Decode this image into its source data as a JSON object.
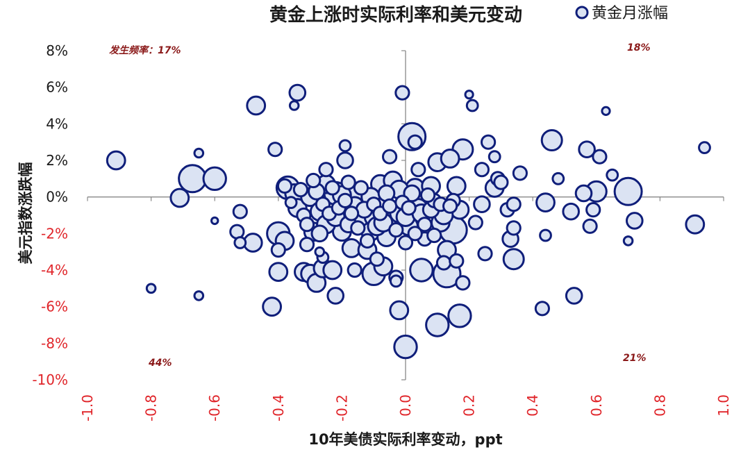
{
  "chart_data": {
    "type": "scatter",
    "title": "黄金上涨时实际利率和美元变动",
    "xlabel": "10年美债实际利率变动，ppt",
    "ylabel": "美元指数涨跌幅",
    "legend": {
      "label": "黄金月涨幅",
      "placement": "top-right"
    },
    "xlim": [
      -1.0,
      1.0
    ],
    "ylim": [
      -10,
      8
    ],
    "x_ticks": [
      "-1.0",
      "-0.8",
      "-0.6",
      "-0.4",
      "-0.2",
      "0.0",
      "0.2",
      "0.4",
      "0.6",
      "0.8",
      "1.0"
    ],
    "y_ticks": [
      "8%",
      "6%",
      "4%",
      "2%",
      "0%",
      "-2%",
      "-4%",
      "-6%",
      "-8%",
      "-10%"
    ],
    "y_tick_colors": {
      "positive": "#1a1a1a",
      "negative": "#e0252a"
    },
    "x_tick_color": "#e0252a",
    "bubble_fill": "#dbe3f3",
    "bubble_stroke": "#0f1e7a",
    "quadrant_labels": {
      "top_left_prefix": "发生频率：",
      "top_left": "17%",
      "top_right": "18%",
      "bottom_left": "44%",
      "bottom_right": "21%"
    },
    "grid": false,
    "points": [
      [
        -0.91,
        2.0,
        3
      ],
      [
        -0.8,
        -5.0,
        1
      ],
      [
        -0.71,
        -0.05,
        3
      ],
      [
        -0.67,
        1.0,
        5
      ],
      [
        -0.65,
        2.4,
        1
      ],
      [
        -0.65,
        -5.4,
        1
      ],
      [
        -0.6,
        1.0,
        4
      ],
      [
        -0.6,
        -1.3,
        0.5
      ],
      [
        -0.52,
        -0.8,
        2
      ],
      [
        -0.52,
        -2.5,
        1.5
      ],
      [
        -0.53,
        -1.9,
        2
      ],
      [
        -0.48,
        -2.5,
        3
      ],
      [
        -0.47,
        5.0,
        3
      ],
      [
        -0.42,
        -6.0,
        3
      ],
      [
        -0.41,
        2.6,
        2
      ],
      [
        -0.4,
        -2.0,
        4
      ],
      [
        -0.4,
        -4.1,
        3
      ],
      [
        -0.4,
        -2.9,
        2
      ],
      [
        -0.38,
        -2.4,
        3
      ],
      [
        -0.34,
        5.7,
        2.5
      ],
      [
        -0.35,
        5.0,
        1
      ],
      [
        -0.35,
        0.2,
        3
      ],
      [
        -0.34,
        -0.6,
        3
      ],
      [
        -0.37,
        0.5,
        4
      ],
      [
        -0.32,
        -4.1,
        3
      ],
      [
        -0.3,
        -4.2,
        3
      ],
      [
        -0.28,
        -4.7,
        3
      ],
      [
        -0.29,
        -1.9,
        3
      ],
      [
        -0.27,
        -3.0,
        1
      ],
      [
        -0.26,
        -3.9,
        3
      ],
      [
        -0.25,
        1.5,
        2
      ],
      [
        -0.25,
        0.7,
        3
      ],
      [
        -0.23,
        -4.0,
        3
      ],
      [
        -0.22,
        -5.4,
        2.5
      ],
      [
        -0.22,
        0.2,
        4
      ],
      [
        -0.2,
        -1.0,
        4
      ],
      [
        -0.2,
        -1.9,
        3
      ],
      [
        -0.19,
        2.0,
        2.5
      ],
      [
        -0.19,
        2.8,
        1.5
      ],
      [
        -0.18,
        0.8,
        2
      ],
      [
        -0.17,
        -2.8,
        3
      ],
      [
        -0.16,
        -4.0,
        2
      ],
      [
        -0.15,
        0.3,
        3
      ],
      [
        -0.14,
        -1.3,
        3
      ],
      [
        -0.12,
        -2.9,
        3
      ],
      [
        -0.12,
        -0.3,
        4
      ],
      [
        -0.11,
        -1.9,
        3
      ],
      [
        -0.1,
        -1.1,
        3
      ],
      [
        -0.1,
        -4.2,
        4
      ],
      [
        -0.09,
        -3.4,
        2
      ],
      [
        -0.08,
        0.7,
        3
      ],
      [
        -0.07,
        -3.8,
        3
      ],
      [
        -0.06,
        -2.2,
        3
      ],
      [
        -0.05,
        2.2,
        2
      ],
      [
        -0.04,
        -1.3,
        3
      ],
      [
        -0.03,
        -4.4,
        2
      ],
      [
        -0.03,
        -4.6,
        1.5
      ],
      [
        -0.02,
        -6.2,
        3
      ],
      [
        -0.02,
        -0.9,
        3
      ],
      [
        -0.01,
        5.7,
        2
      ],
      [
        0.0,
        -8.2,
        4
      ],
      [
        0.0,
        -2.5,
        2
      ],
      [
        0.01,
        -1.6,
        3
      ],
      [
        0.02,
        3.3,
        5
      ],
      [
        0.03,
        0.5,
        3
      ],
      [
        0.03,
        3.0,
        2
      ],
      [
        0.04,
        -0.6,
        3
      ],
      [
        0.04,
        1.5,
        2
      ],
      [
        0.05,
        -4.0,
        4
      ],
      [
        0.06,
        -2.3,
        2
      ],
      [
        0.08,
        0.6,
        3
      ],
      [
        0.09,
        -0.2,
        2
      ],
      [
        0.1,
        1.9,
        3
      ],
      [
        0.11,
        -1.4,
        3
      ],
      [
        0.1,
        -7.0,
        4
      ],
      [
        0.12,
        -3.6,
        2
      ],
      [
        0.13,
        -2.9,
        3
      ],
      [
        0.13,
        -4.2,
        5
      ],
      [
        0.14,
        2.1,
        3
      ],
      [
        0.15,
        -0.2,
        2
      ],
      [
        0.15,
        -1.8,
        5
      ],
      [
        0.16,
        -3.5,
        2
      ],
      [
        0.16,
        0.6,
        3
      ],
      [
        0.17,
        -6.5,
        4
      ],
      [
        0.17,
        -0.7,
        3
      ],
      [
        0.18,
        -4.7,
        2
      ],
      [
        0.18,
        2.6,
        3.5
      ],
      [
        0.2,
        5.6,
        0.8
      ],
      [
        0.21,
        5.0,
        1.5
      ],
      [
        0.22,
        -1.4,
        2
      ],
      [
        0.24,
        -0.4,
        2.5
      ],
      [
        0.24,
        1.5,
        2
      ],
      [
        0.25,
        -3.1,
        2
      ],
      [
        0.26,
        3.0,
        2
      ],
      [
        0.28,
        2.2,
        1.5
      ],
      [
        0.28,
        0.5,
        3
      ],
      [
        0.29,
        1.0,
        2
      ],
      [
        0.3,
        0.8,
        2
      ],
      [
        0.32,
        -0.7,
        2
      ],
      [
        0.33,
        -2.3,
        2.5
      ],
      [
        0.34,
        -0.4,
        2
      ],
      [
        0.34,
        -1.7,
        2
      ],
      [
        0.34,
        -3.4,
        3.5
      ],
      [
        0.36,
        1.3,
        2
      ],
      [
        0.43,
        -6.1,
        2
      ],
      [
        0.44,
        -2.1,
        1.5
      ],
      [
        0.44,
        -0.3,
        3
      ],
      [
        0.46,
        3.1,
        3.5
      ],
      [
        0.48,
        1.0,
        1.5
      ],
      [
        0.52,
        -0.8,
        2.5
      ],
      [
        0.53,
        -5.4,
        2.5
      ],
      [
        0.56,
        0.2,
        2.5
      ],
      [
        0.57,
        2.6,
        2.5
      ],
      [
        0.58,
        -1.6,
        2
      ],
      [
        0.59,
        -0.7,
        2
      ],
      [
        0.6,
        0.3,
        3.5
      ],
      [
        0.61,
        2.2,
        2
      ],
      [
        0.63,
        4.7,
        0.8
      ],
      [
        0.65,
        1.2,
        1.5
      ],
      [
        0.7,
        0.3,
        5
      ],
      [
        0.7,
        -2.4,
        1
      ],
      [
        0.72,
        -1.3,
        2.5
      ],
      [
        0.91,
        -1.5,
        3
      ],
      [
        0.94,
        2.7,
        1.5
      ],
      [
        -0.3,
        0.0,
        3
      ],
      [
        -0.28,
        0.3,
        2.5
      ],
      [
        -0.27,
        -0.8,
        3
      ],
      [
        -0.26,
        -0.4,
        2
      ],
      [
        -0.25,
        -1.5,
        3
      ],
      [
        -0.24,
        -0.9,
        2
      ],
      [
        -0.22,
        -1.1,
        3
      ],
      [
        -0.21,
        -0.6,
        2
      ],
      [
        -0.2,
        0.1,
        3
      ],
      [
        -0.19,
        -0.2,
        2
      ],
      [
        -0.18,
        -1.5,
        2.5
      ],
      [
        -0.17,
        -0.9,
        2
      ],
      [
        -0.16,
        -0.5,
        3
      ],
      [
        -0.15,
        -1.7,
        2
      ],
      [
        -0.14,
        0.5,
        2
      ],
      [
        -0.13,
        -0.7,
        2.5
      ],
      [
        -0.12,
        -2.4,
        2
      ],
      [
        -0.11,
        0.0,
        3
      ],
      [
        -0.1,
        -0.4,
        2
      ],
      [
        -0.09,
        -1.6,
        3
      ],
      [
        -0.08,
        -0.9,
        2
      ],
      [
        -0.07,
        -1.4,
        3
      ],
      [
        -0.06,
        0.2,
        2.5
      ],
      [
        -0.05,
        -0.5,
        2
      ],
      [
        -0.04,
        0.9,
        3
      ],
      [
        -0.03,
        -1.8,
        2
      ],
      [
        -0.02,
        0.4,
        3
      ],
      [
        -0.01,
        -0.3,
        2
      ],
      [
        0.0,
        -1.1,
        3
      ],
      [
        0.01,
        -0.6,
        2
      ],
      [
        0.02,
        0.2,
        2.5
      ],
      [
        0.03,
        -2.0,
        2
      ],
      [
        0.05,
        -0.9,
        3
      ],
      [
        0.06,
        -1.5,
        2
      ],
      [
        0.07,
        0.1,
        2
      ],
      [
        0.08,
        -0.7,
        2.5
      ],
      [
        0.09,
        -2.1,
        2
      ],
      [
        0.11,
        -0.4,
        2
      ],
      [
        0.12,
        -1.0,
        3
      ],
      [
        0.14,
        -0.5,
        2
      ],
      [
        -0.32,
        -1.0,
        2
      ],
      [
        -0.31,
        -2.6,
        2
      ],
      [
        -0.29,
        0.9,
        2
      ],
      [
        -0.27,
        -2.0,
        2.5
      ],
      [
        -0.23,
        0.5,
        2
      ],
      [
        -0.33,
        0.4,
        2
      ],
      [
        -0.36,
        -0.3,
        1.5
      ],
      [
        -0.38,
        0.6,
        2
      ],
      [
        -0.31,
        -1.5,
        2
      ],
      [
        -0.26,
        -3.3,
        1.5
      ]
    ]
  }
}
